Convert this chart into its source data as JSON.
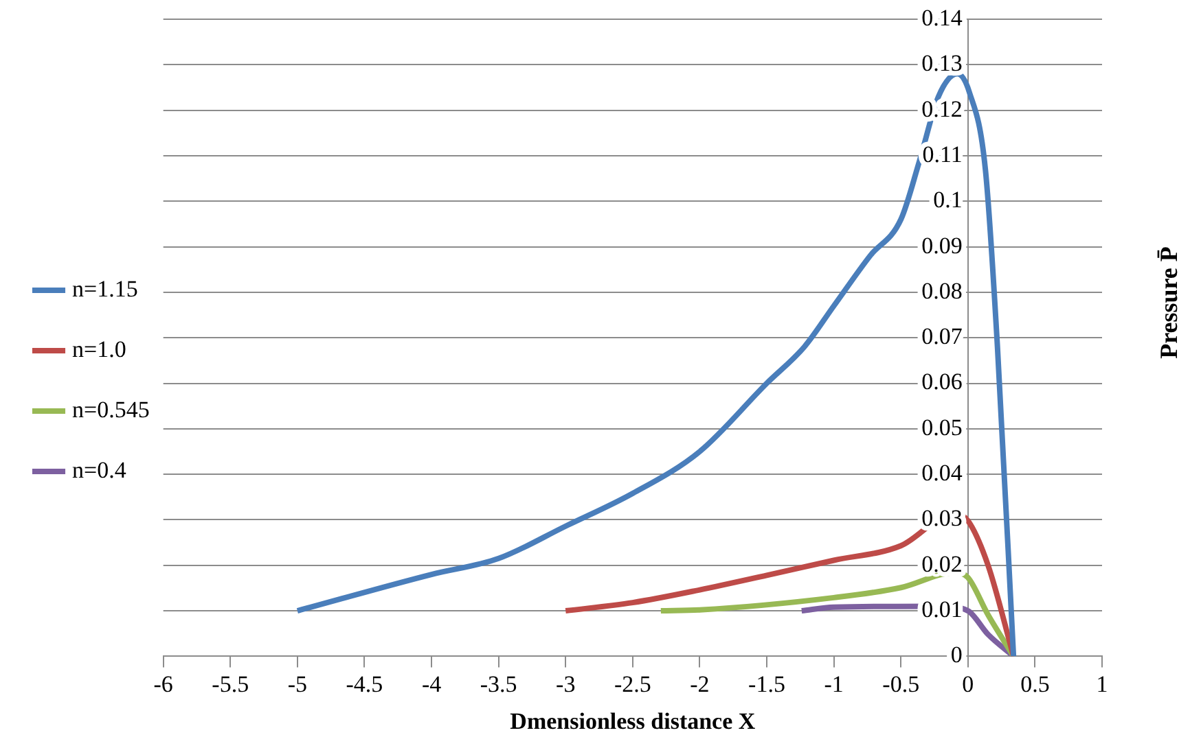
{
  "chart_data": {
    "type": "line",
    "xlabel": "Dmensionless distance X",
    "ylabel": "Pressure P̄",
    "xlim": [
      -6,
      1
    ],
    "xticks": [
      -6,
      -5.5,
      -5,
      -4.5,
      -4,
      -3.5,
      -3,
      -2.5,
      -2,
      -1.5,
      -1,
      -0.5,
      0,
      0.5,
      1
    ],
    "ylim": [
      0,
      0.14
    ],
    "yticks": [
      0,
      0.01,
      0.02,
      0.03,
      0.04,
      0.05,
      0.06,
      0.07,
      0.08,
      0.09,
      0.1,
      0.11,
      0.12,
      0.13,
      0.14
    ],
    "grid": "y",
    "legend": "left",
    "series": [
      {
        "name": "n=1.15",
        "color": "#4a7ebb",
        "x": [
          -5,
          -4,
          -3.5,
          -3,
          -2.5,
          -2,
          -1.5,
          -1.22,
          -1,
          -0.73,
          -0.5,
          -0.36,
          -0.22,
          -0.08,
          0.01,
          0.13,
          0.22,
          0.34
        ],
        "values": [
          0.01,
          0.018,
          0.0215,
          0.0286,
          0.0358,
          0.045,
          0.06,
          0.068,
          0.077,
          0.088,
          0.096,
          0.109,
          0.123,
          0.128,
          0.124,
          0.107,
          0.068,
          0
        ]
      },
      {
        "name": "n=1.0",
        "color": "#be4b48",
        "x": [
          -3,
          -2.5,
          -2,
          -1.5,
          -1,
          -0.5,
          -0.1,
          0,
          0.15,
          0.34
        ],
        "values": [
          0.01,
          0.0118,
          0.0146,
          0.0178,
          0.0211,
          0.0243,
          0.0314,
          0.0298,
          0.02,
          0
        ]
      },
      {
        "name": "n=0.545",
        "color": "#98b954",
        "x": [
          -2.29,
          -2,
          -1,
          -0.5,
          -0.1,
          0,
          0.15,
          0.34
        ],
        "values": [
          0.01,
          0.0102,
          0.0129,
          0.0151,
          0.0184,
          0.0173,
          0.0091,
          0
        ]
      },
      {
        "name": "n=0.4",
        "color": "#7d60a0",
        "x": [
          -1.24,
          -1,
          -0.2,
          0,
          0.15,
          0.34
        ],
        "values": [
          0.01,
          0.0108,
          0.011,
          0.01,
          0.0048,
          0
        ]
      }
    ]
  }
}
